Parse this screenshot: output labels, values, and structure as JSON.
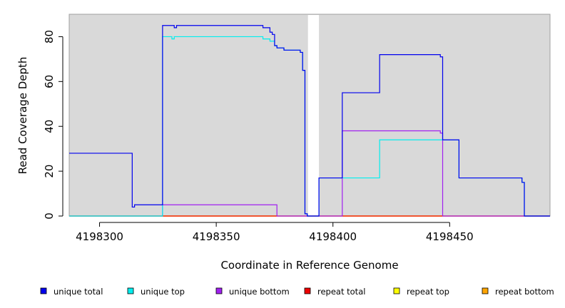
{
  "chart_data": {
    "type": "line",
    "title": "",
    "xlabel": "Coordinate in Reference Genome",
    "ylabel": "Read Coverage Depth",
    "xlim": [
      4198287,
      4198493
    ],
    "ylim": [
      0,
      90
    ],
    "x_ticks": [
      4198300,
      4198350,
      4198400,
      4198450
    ],
    "y_ticks": [
      0,
      20,
      40,
      60,
      80
    ],
    "background": "#d9d9d9",
    "gap_region": [
      4198389,
      4198394
    ],
    "grid": false,
    "legend_position": "bottom",
    "series": [
      {
        "name": "unique total",
        "color": "#0000ee",
        "points": [
          [
            4198287,
            28
          ],
          [
            4198314,
            28
          ],
          [
            4198314,
            4
          ],
          [
            4198315,
            4
          ],
          [
            4198315,
            5
          ],
          [
            4198327,
            5
          ],
          [
            4198327,
            85
          ],
          [
            4198332,
            85
          ],
          [
            4198332,
            84
          ],
          [
            4198333,
            84
          ],
          [
            4198333,
            85
          ],
          [
            4198370,
            85
          ],
          [
            4198370,
            84
          ],
          [
            4198373,
            84
          ],
          [
            4198373,
            82
          ],
          [
            4198374,
            82
          ],
          [
            4198374,
            81
          ],
          [
            4198375,
            81
          ],
          [
            4198375,
            76
          ],
          [
            4198376,
            76
          ],
          [
            4198376,
            75
          ],
          [
            4198379,
            75
          ],
          [
            4198379,
            74
          ],
          [
            4198386,
            74
          ],
          [
            4198386,
            73
          ],
          [
            4198387,
            73
          ],
          [
            4198387,
            65
          ],
          [
            4198388,
            65
          ],
          [
            4198388,
            1
          ],
          [
            4198389,
            1
          ],
          [
            4198389,
            0
          ],
          [
            4198394,
            0
          ],
          [
            4198394,
            17
          ],
          [
            4198404,
            17
          ],
          [
            4198404,
            55
          ],
          [
            4198420,
            55
          ],
          [
            4198420,
            72
          ],
          [
            4198446,
            72
          ],
          [
            4198446,
            71
          ],
          [
            4198447,
            71
          ],
          [
            4198447,
            34
          ],
          [
            4198454,
            34
          ],
          [
            4198454,
            17
          ],
          [
            4198481,
            17
          ],
          [
            4198481,
            15
          ],
          [
            4198482,
            15
          ],
          [
            4198482,
            0
          ],
          [
            4198493,
            0
          ]
        ]
      },
      {
        "name": "unique top",
        "color": "#00eeee",
        "points": [
          [
            4198287,
            0
          ],
          [
            4198327,
            0
          ],
          [
            4198327,
            80
          ],
          [
            4198331,
            80
          ],
          [
            4198331,
            79
          ],
          [
            4198332,
            79
          ],
          [
            4198332,
            80
          ],
          [
            4198370,
            80
          ],
          [
            4198370,
            79
          ],
          [
            4198373,
            79
          ],
          [
            4198373,
            78
          ],
          [
            4198375,
            78
          ],
          [
            4198375,
            76
          ],
          [
            4198376,
            76
          ],
          [
            4198376,
            75
          ],
          [
            4198379,
            75
          ],
          [
            4198379,
            74
          ],
          [
            4198386,
            74
          ],
          [
            4198386,
            73
          ],
          [
            4198387,
            73
          ],
          [
            4198387,
            65
          ],
          [
            4198388,
            65
          ],
          [
            4198388,
            1
          ],
          [
            4198389,
            1
          ],
          [
            4198389,
            0
          ],
          [
            4198394,
            0
          ],
          [
            4198394,
            17
          ],
          [
            4198420,
            17
          ],
          [
            4198420,
            34
          ],
          [
            4198447,
            34
          ],
          [
            4198447,
            34
          ],
          [
            4198454,
            34
          ],
          [
            4198454,
            17
          ],
          [
            4198481,
            17
          ],
          [
            4198481,
            15
          ],
          [
            4198482,
            15
          ],
          [
            4198482,
            0
          ],
          [
            4198493,
            0
          ]
        ]
      },
      {
        "name": "unique bottom",
        "color": "#a020f0",
        "points": [
          [
            4198287,
            0
          ],
          [
            4198327,
            0
          ],
          [
            4198327,
            5
          ],
          [
            4198376,
            5
          ],
          [
            4198376,
            0
          ],
          [
            4198404,
            0
          ],
          [
            4198404,
            38
          ],
          [
            4198446,
            38
          ],
          [
            4198446,
            37
          ],
          [
            4198447,
            37
          ],
          [
            4198447,
            0
          ],
          [
            4198493,
            0
          ]
        ]
      },
      {
        "name": "repeat total",
        "color": "#ee0000",
        "points": [
          [
            4198287,
            0
          ],
          [
            4198493,
            0
          ]
        ]
      },
      {
        "name": "repeat top",
        "color": "#ffff00",
        "points": [
          [
            4198287,
            0
          ],
          [
            4198493,
            0
          ]
        ]
      },
      {
        "name": "repeat bottom",
        "color": "#ffa500",
        "points": [
          [
            4198287,
            0
          ],
          [
            4198493,
            0
          ]
        ]
      }
    ]
  }
}
